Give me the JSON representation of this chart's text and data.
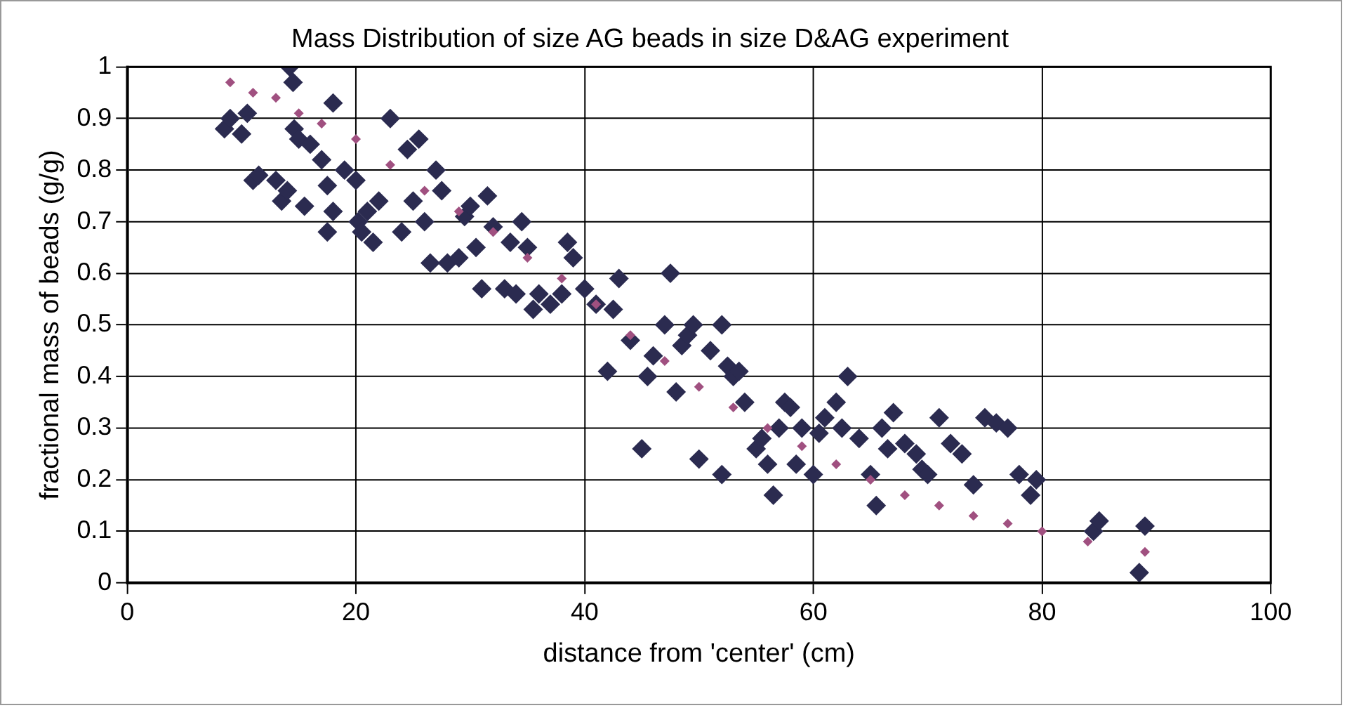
{
  "chart_data": {
    "type": "scatter",
    "title": "Mass Distribution of size AG beads in size D&AG experiment",
    "xlabel": "distance from 'center' (cm)",
    "ylabel": "fractional mass of beads (g/g)",
    "xlim": [
      0,
      100
    ],
    "xticks": [
      0,
      20,
      40,
      60,
      80,
      100
    ],
    "ylim": [
      0,
      1
    ],
    "yticks": [
      0,
      0.1,
      0.2,
      0.3,
      0.4,
      0.5,
      0.6,
      0.7,
      0.8,
      0.9,
      1
    ],
    "grid": true,
    "legend": false,
    "marker": "diamond",
    "series": [
      {
        "color": "#2b2b50",
        "x": [
          8.5,
          9,
          10,
          10.5,
          11,
          11.5,
          13,
          13.5,
          14,
          14.2,
          14.5,
          14.6,
          15,
          15.5,
          16,
          17,
          17.5,
          17.5,
          18,
          18,
          19,
          20,
          20.2,
          20.5,
          21,
          21.5,
          22,
          23,
          24,
          24.5,
          25,
          25.5,
          26,
          26.5,
          27,
          27.5,
          28,
          29,
          29.5,
          30,
          30.5,
          31,
          31.5,
          32,
          33,
          33.5,
          34,
          34.5,
          35,
          35.5,
          36,
          37,
          38,
          38.5,
          39,
          40,
          41,
          42,
          42.5,
          43,
          44,
          45,
          45.5,
          46,
          47,
          47.5,
          48,
          48.5,
          49,
          49.5,
          50,
          51,
          52,
          52,
          52.5,
          53,
          53.5,
          54,
          55,
          55.5,
          56,
          56.5,
          57,
          57.5,
          58,
          58.5,
          59,
          60,
          60.5,
          61,
          62,
          62.5,
          63,
          64,
          65,
          65.5,
          66,
          66.5,
          67,
          68,
          69,
          69.5,
          70,
          71,
          72,
          73,
          74,
          75,
          76,
          77,
          78,
          79,
          79.5,
          84.5,
          85,
          88.5,
          89
        ],
        "values": [
          0.88,
          0.9,
          0.87,
          0.91,
          0.78,
          0.79,
          0.78,
          0.74,
          0.76,
          1.0,
          0.97,
          0.88,
          0.86,
          0.73,
          0.85,
          0.82,
          0.68,
          0.77,
          0.93,
          0.72,
          0.8,
          0.78,
          0.7,
          0.68,
          0.72,
          0.66,
          0.74,
          0.9,
          0.68,
          0.84,
          0.74,
          0.86,
          0.7,
          0.62,
          0.8,
          0.76,
          0.62,
          0.63,
          0.71,
          0.73,
          0.65,
          0.57,
          0.75,
          0.69,
          0.57,
          0.66,
          0.56,
          0.7,
          0.65,
          0.53,
          0.56,
          0.54,
          0.56,
          0.66,
          0.63,
          0.57,
          0.54,
          0.41,
          0.53,
          0.59,
          0.47,
          0.26,
          0.4,
          0.44,
          0.5,
          0.6,
          0.37,
          0.46,
          0.48,
          0.5,
          0.24,
          0.45,
          0.21,
          0.5,
          0.42,
          0.4,
          0.41,
          0.35,
          0.26,
          0.28,
          0.23,
          0.17,
          0.3,
          0.35,
          0.34,
          0.23,
          0.3,
          0.21,
          0.29,
          0.32,
          0.35,
          0.3,
          0.4,
          0.28,
          0.21,
          0.15,
          0.3,
          0.26,
          0.33,
          0.27,
          0.25,
          0.22,
          0.21,
          0.32,
          0.27,
          0.25,
          0.19,
          0.32,
          0.31,
          0.3,
          0.21,
          0.17,
          0.2,
          0.1,
          0.12,
          0.02,
          0.11
        ]
      },
      {
        "color": "#a05080",
        "x": [
          9,
          11,
          13,
          15,
          17,
          20,
          23,
          26,
          29,
          32,
          35,
          38,
          41,
          44,
          47,
          50,
          53,
          56,
          59,
          62,
          65,
          68,
          71,
          74,
          77,
          80,
          84,
          89
        ],
        "values": [
          0.97,
          0.95,
          0.94,
          0.91,
          0.89,
          0.86,
          0.81,
          0.76,
          0.72,
          0.68,
          0.63,
          0.59,
          0.54,
          0.48,
          0.43,
          0.38,
          0.34,
          0.3,
          0.265,
          0.23,
          0.2,
          0.17,
          0.15,
          0.13,
          0.115,
          0.1,
          0.08,
          0.06
        ]
      }
    ]
  }
}
